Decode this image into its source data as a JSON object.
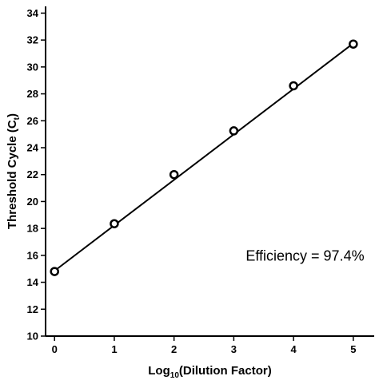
{
  "chart_data": {
    "type": "scatter",
    "title": "",
    "xlabel": {
      "main": "Log",
      "sub": "10",
      "rest": "(Dilution Factor)"
    },
    "ylabel": {
      "main": "Threshold Cycle (C",
      "sub": "t",
      "rest": ")"
    },
    "xlim": [
      -0.15,
      5.35
    ],
    "ylim": [
      10,
      34.5
    ],
    "x_ticks": [
      0,
      1,
      2,
      3,
      4,
      5
    ],
    "y_ticks": [
      10,
      12,
      14,
      16,
      18,
      20,
      22,
      24,
      26,
      28,
      30,
      32,
      34
    ],
    "grid": false,
    "series": [
      {
        "x": [
          0,
          1,
          2,
          3,
          4,
          5
        ],
        "y": [
          14.8,
          18.35,
          22.0,
          25.25,
          28.6,
          31.7
        ],
        "marker": "open-circle",
        "color": "#000000"
      }
    ],
    "fit_line": {
      "x": [
        0,
        5
      ],
      "y": [
        14.85,
        31.75
      ],
      "color": "#000000"
    },
    "annotation": {
      "text": "Efficiency = 97.4%",
      "x": 3.2,
      "y": 15.6
    }
  }
}
